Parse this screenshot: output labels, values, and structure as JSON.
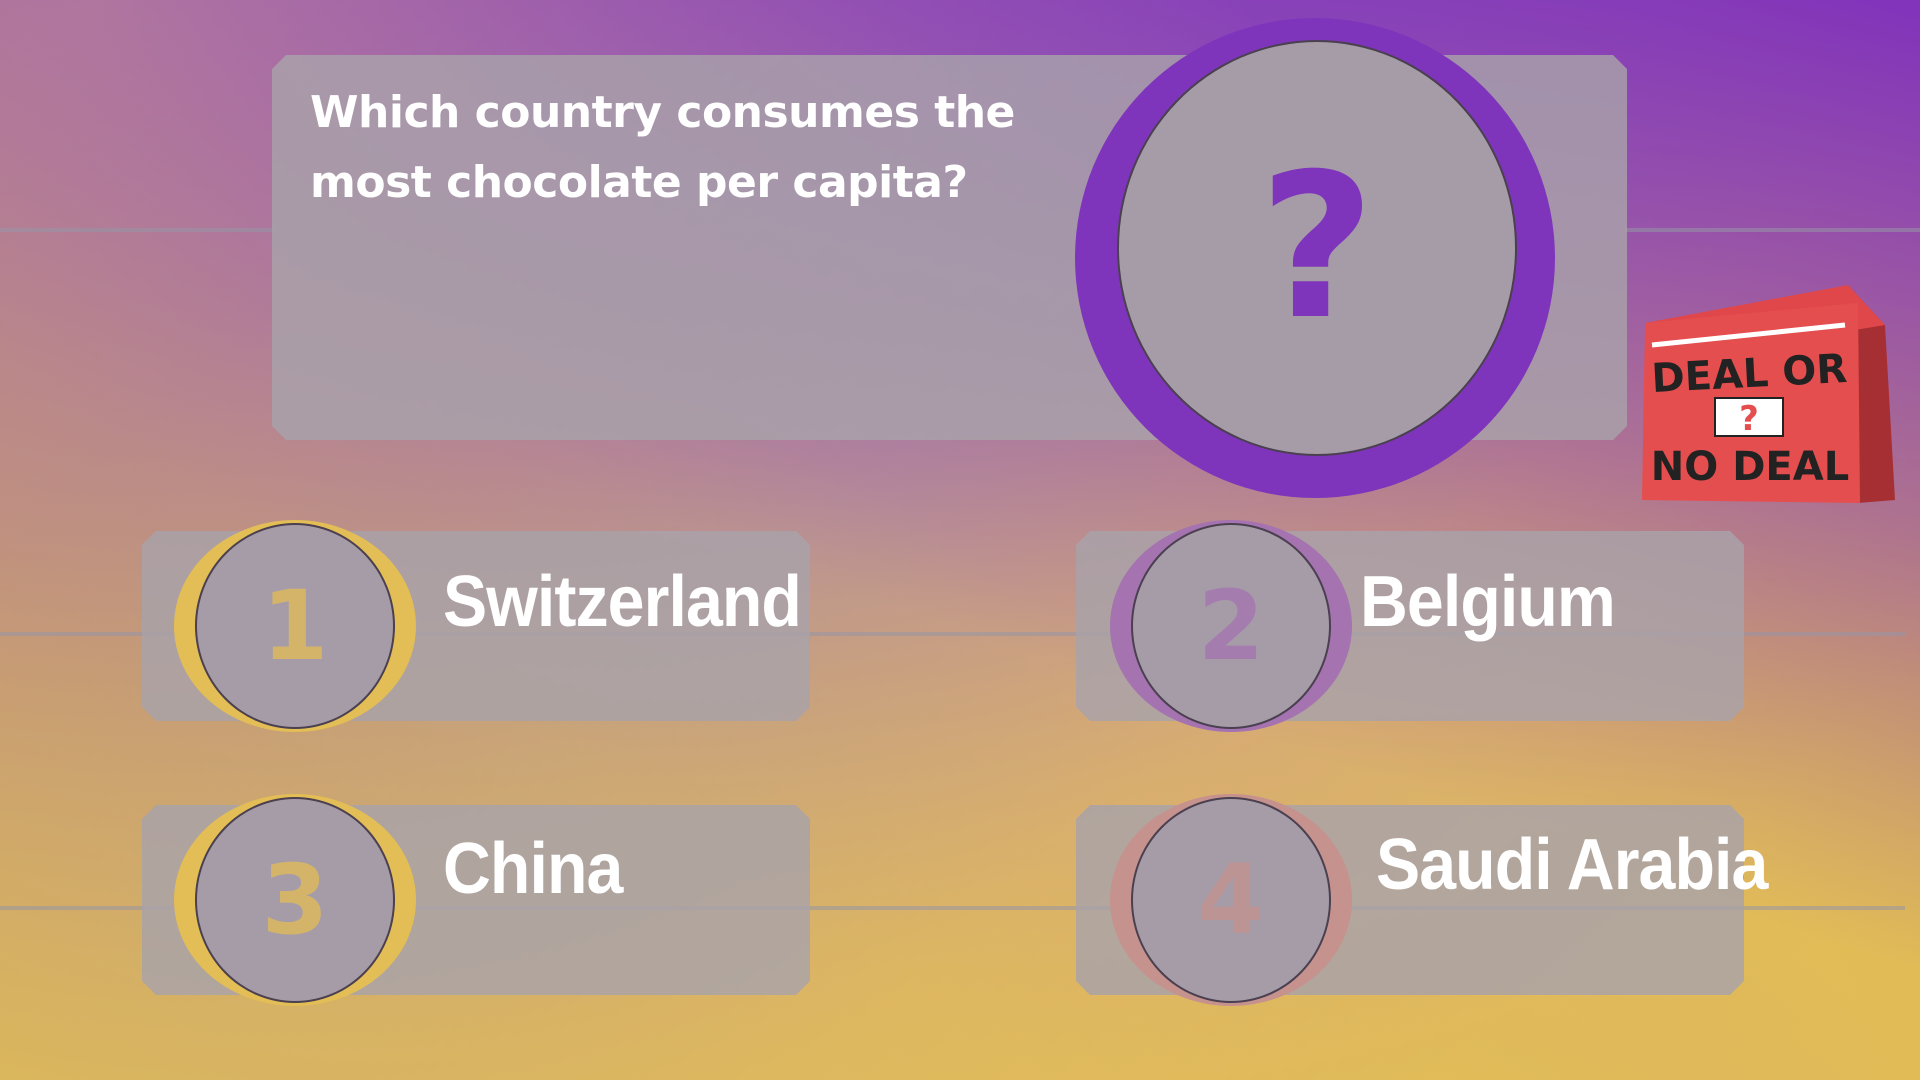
{
  "question": {
    "text": "Which country consumes the most chocolate per capita?",
    "badge_symbol": "?"
  },
  "answers": [
    {
      "number": "1",
      "label": "Switzerland",
      "ring_color": "#e3bd55"
    },
    {
      "number": "2",
      "label": "Belgium",
      "ring_color": "#a473b0"
    },
    {
      "number": "3",
      "label": "China",
      "ring_color": "#e3bd55"
    },
    {
      "number": "4",
      "label": "Saudi Arabia",
      "ring_color": "#c5928e"
    }
  ],
  "logo": {
    "line1": "DEAL OR",
    "symbol": "?",
    "line2": "NO DEAL"
  },
  "colors": {
    "accent_purple": "#7f35bb",
    "gold": "#e3c050",
    "panel": "#a8a2aa",
    "logo_red": "#e54e4e"
  }
}
